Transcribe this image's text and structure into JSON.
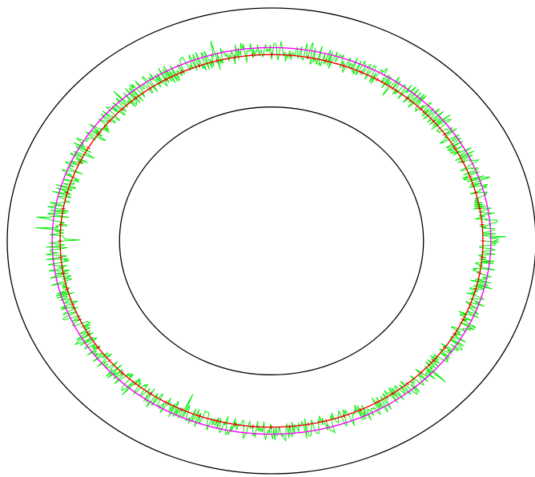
{
  "chart_data": {
    "type": "line",
    "coordinate_system": "polar",
    "title": "",
    "xlabel": "",
    "ylabel": "",
    "legend": "none",
    "grid": false,
    "radial_range": [
      0,
      1.0
    ],
    "boundary_circles": [
      {
        "role": "outer-boundary",
        "r": 1.0,
        "color": "#000000"
      },
      {
        "role": "inner-boundary",
        "r": 0.575,
        "color": "#000000"
      }
    ],
    "series": [
      {
        "role": "noisy-signal",
        "color": "#00ee00",
        "style": "noisy",
        "mean_r": 0.815,
        "noise_amplitude": 0.045,
        "points": 1200
      },
      {
        "role": "mean-circle",
        "color": "#ff00ff",
        "style": "circle",
        "r": 0.83
      },
      {
        "role": "reference-circle",
        "color": "#ee0000",
        "style": "ticked-circle",
        "r": 0.8,
        "tick_count": 72
      }
    ]
  }
}
